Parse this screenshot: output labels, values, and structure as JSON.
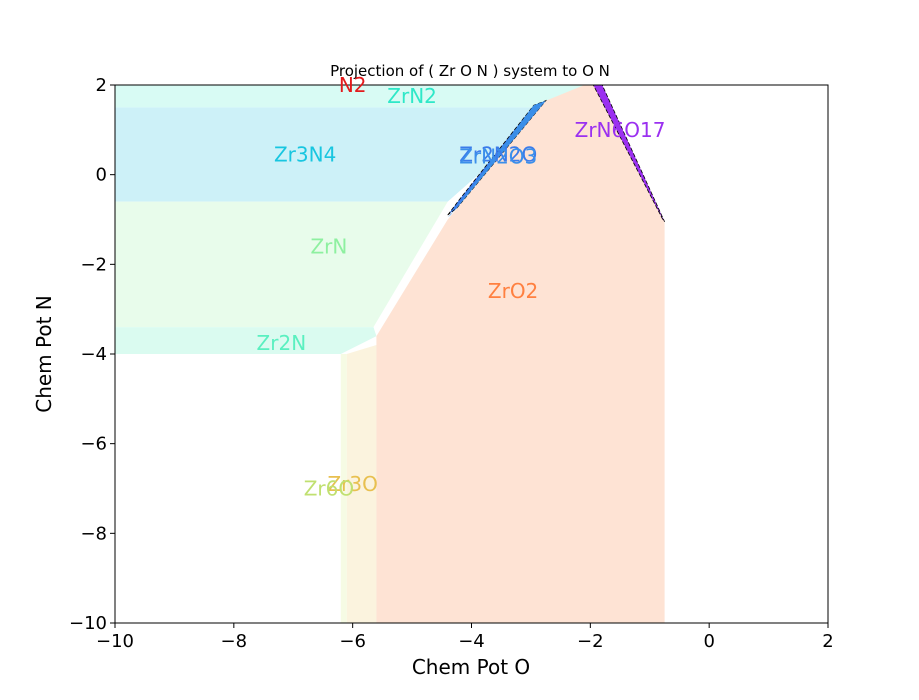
{
  "chart_data": {
    "type": "area",
    "title": "Projection of ( Zr O N ) system to O N",
    "xlabel": "Chem Pot O",
    "ylabel": "Chem Pot N",
    "xlim": [
      -10,
      2
    ],
    "ylim": [
      -10,
      2
    ],
    "xticks": [
      -10,
      -8,
      -6,
      -4,
      -2,
      0,
      2
    ],
    "yticks": [
      -10,
      -8,
      -6,
      -4,
      -2,
      0,
      2
    ],
    "xtick_labels": [
      "−10",
      "−8",
      "−6",
      "−4",
      "−2",
      "0",
      "2"
    ],
    "ytick_labels": [
      "−10",
      "−8",
      "−6",
      "−4",
      "−2",
      "0",
      "2"
    ],
    "grid": false,
    "regions": [
      {
        "name": "N2",
        "color": "#e31a1c",
        "fill": "none",
        "points": [],
        "label": [
          -6.0,
          2.0
        ]
      },
      {
        "name": "ZrN2",
        "color": "#2ee8c8",
        "fill": "#d8fbf4",
        "points": [
          [
            -10,
            2
          ],
          [
            -2.1,
            2
          ],
          [
            -2.6,
            1.5
          ],
          [
            -10,
            1.5
          ]
        ],
        "label": [
          -5.0,
          1.75
        ]
      },
      {
        "name": "Zr3N4",
        "color": "#18c6e0",
        "fill": "#cdf1f8",
        "points": [
          [
            -10,
            1.5
          ],
          [
            -2.6,
            1.5
          ],
          [
            -4.4,
            -0.6
          ],
          [
            -10,
            -0.6
          ]
        ],
        "label": [
          -6.8,
          0.45
        ]
      },
      {
        "name": "ZrN",
        "color": "#8ef0a0",
        "fill": "#e8fceb",
        "points": [
          [
            -10,
            -0.6
          ],
          [
            -4.4,
            -0.6
          ],
          [
            -5.65,
            -3.4
          ],
          [
            -10,
            -3.4
          ]
        ],
        "label": [
          -6.4,
          -1.6
        ]
      },
      {
        "name": "Zr2N",
        "color": "#5af0c0",
        "fill": "#dafbf0",
        "points": [
          [
            -10,
            -3.4
          ],
          [
            -5.65,
            -3.4
          ],
          [
            -5.6,
            -3.6
          ],
          [
            -6.2,
            -4.0
          ],
          [
            -10,
            -4.0
          ]
        ],
        "label": [
          -7.2,
          -3.75
        ]
      },
      {
        "name": "Zr3O",
        "color": "#e8c050",
        "fill": "#fbf3de",
        "points": [
          [
            -6.1,
            -4.0
          ],
          [
            -5.6,
            -3.8
          ],
          [
            -5.6,
            -10
          ],
          [
            -6.1,
            -10
          ]
        ],
        "label": [
          -6.0,
          -6.9
        ]
      },
      {
        "name": "Zr6O",
        "color": "#c0e070",
        "fill": "#f6fbe4",
        "points": [
          [
            -6.2,
            -4.0
          ],
          [
            -6.1,
            -4.0
          ],
          [
            -6.1,
            -10
          ],
          [
            -6.2,
            -10
          ]
        ],
        "label": [
          -6.4,
          -7.0
        ]
      },
      {
        "name": "ZrO2",
        "color": "#ff8040",
        "fill": "#fee3d4",
        "points": [
          [
            -5.6,
            -3.6
          ],
          [
            -4.4,
            -1.0
          ],
          [
            -2.75,
            1.65
          ],
          [
            -2.1,
            2.0
          ],
          [
            -1.9,
            2.0
          ],
          [
            -0.75,
            -1.05
          ],
          [
            -0.75,
            -10
          ],
          [
            -5.6,
            -10
          ]
        ],
        "label": [
          -3.3,
          -2.6
        ]
      },
      {
        "name": "Zr2N2O",
        "color": "#3b7bea",
        "fill": "#3b7bea",
        "points": [
          [
            -4.4,
            -0.9
          ],
          [
            -4.2,
            -0.55
          ],
          [
            -2.95,
            1.55
          ],
          [
            -2.75,
            1.65
          ],
          [
            -4.25,
            -0.75
          ]
        ],
        "label": [
          -3.55,
          0.45
        ]
      },
      {
        "name": "ZrN2O3",
        "color": "#3b8fea",
        "fill": "#3a8ee8",
        "points": [
          [
            -4.4,
            -0.95
          ],
          [
            -4.25,
            -0.75
          ],
          [
            -2.75,
            1.65
          ],
          [
            -2.95,
            1.55
          ],
          [
            -4.35,
            -0.9
          ]
        ],
        "label": [
          -3.55,
          0.4
        ]
      },
      {
        "name": "ZrN6O17",
        "color": "#9b30f0",
        "fill": "#9b30f0",
        "points": [
          [
            -1.95,
            2.0
          ],
          [
            -1.8,
            2.0
          ],
          [
            -0.75,
            -1.05
          ],
          [
            -0.78,
            -1.0
          ]
        ],
        "label": [
          -1.5,
          1.0
        ]
      }
    ]
  }
}
